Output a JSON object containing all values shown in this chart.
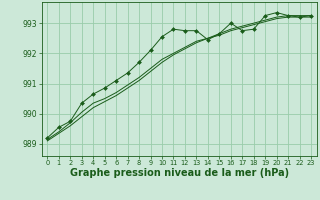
{
  "bg_color": "#cce8d8",
  "grid_color": "#99ccaa",
  "line_color": "#1a5c1a",
  "xlabel": "Graphe pression niveau de la mer (hPa)",
  "xlabel_fontsize": 7.0,
  "ylim": [
    988.6,
    993.7
  ],
  "xlim": [
    -0.5,
    23.5
  ],
  "yticks": [
    989,
    990,
    991,
    992,
    993
  ],
  "xticks": [
    0,
    1,
    2,
    3,
    4,
    5,
    6,
    7,
    8,
    9,
    10,
    11,
    12,
    13,
    14,
    15,
    16,
    17,
    18,
    19,
    20,
    21,
    22,
    23
  ],
  "series1_x": [
    0,
    1,
    2,
    3,
    4,
    5,
    6,
    7,
    8,
    9,
    10,
    11,
    12,
    13,
    14,
    15,
    16,
    17,
    18,
    19,
    20,
    21,
    22,
    23
  ],
  "series1_y": [
    989.2,
    989.55,
    989.75,
    990.35,
    990.65,
    990.85,
    991.1,
    991.35,
    991.7,
    992.1,
    992.55,
    992.8,
    992.75,
    992.75,
    992.45,
    992.65,
    993.0,
    992.75,
    992.8,
    993.25,
    993.35,
    993.25,
    993.2,
    993.25
  ],
  "series2_x": [
    0,
    1,
    2,
    3,
    4,
    5,
    6,
    7,
    8,
    9,
    10,
    11,
    12,
    13,
    14,
    15,
    16,
    17,
    18,
    19,
    20,
    21,
    22,
    23
  ],
  "series2_y": [
    989.15,
    989.4,
    989.7,
    990.05,
    990.35,
    990.5,
    990.7,
    990.95,
    991.2,
    991.5,
    991.8,
    992.0,
    992.2,
    992.4,
    992.5,
    992.65,
    992.8,
    992.9,
    993.0,
    993.1,
    993.2,
    993.25,
    993.25,
    993.25
  ],
  "series3_x": [
    0,
    1,
    2,
    3,
    4,
    5,
    6,
    7,
    8,
    9,
    10,
    11,
    12,
    13,
    14,
    15,
    16,
    17,
    18,
    19,
    20,
    21,
    22,
    23
  ],
  "series3_y": [
    989.1,
    989.35,
    989.6,
    989.9,
    990.2,
    990.4,
    990.6,
    990.85,
    991.1,
    991.4,
    991.7,
    991.95,
    992.15,
    992.35,
    992.5,
    992.6,
    992.75,
    992.85,
    992.95,
    993.05,
    993.15,
    993.2,
    993.2,
    993.2
  ]
}
